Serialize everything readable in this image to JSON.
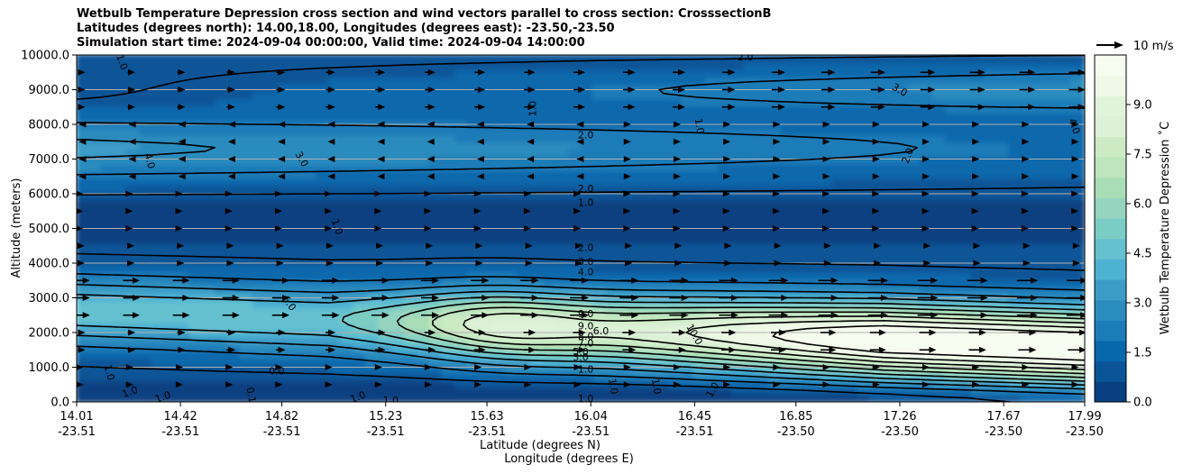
{
  "chart_data": {
    "type": "contour-cross-section",
    "title_lines": [
      "Wetbulb Temperature Depression cross section and wind vectors parallel to cross section: CrosssectionB",
      "Latitudes (degrees north): 14.00,18.00, Longitudes (degrees east): -23.50,-23.50",
      "Simulation start time: 2024-09-04 00:00:00, Valid time: 2024-09-04 14:00:00"
    ],
    "ylabel": "Altitude (meters)",
    "xlabel_line1": "Latitude (degrees N)",
    "xlabel_line2": "Longitude (degrees E)",
    "ylim": [
      0,
      10000
    ],
    "yticks": [
      "0.0",
      "1000.0",
      "2000.0",
      "3000.0",
      "4000.0",
      "5000.0",
      "6000.0",
      "7000.0",
      "8000.0",
      "9000.0",
      "10000.0"
    ],
    "ytick_values": [
      0,
      1000,
      2000,
      3000,
      4000,
      5000,
      6000,
      7000,
      8000,
      9000,
      10000
    ],
    "xlim": [
      14.01,
      17.99
    ],
    "xticks_lat": [
      "14.01",
      "14.42",
      "14.82",
      "15.23",
      "15.63",
      "16.04",
      "16.45",
      "16.85",
      "17.26",
      "17.67",
      "17.99"
    ],
    "xticks_lon": [
      "-23.51",
      "-23.51",
      "-23.51",
      "-23.51",
      "-23.51",
      "-23.51",
      "-23.51",
      "-23.50",
      "-23.50",
      "-23.50",
      "-23.50"
    ],
    "xtick_values": [
      14.01,
      14.42,
      14.82,
      15.23,
      15.63,
      16.04,
      16.45,
      16.85,
      17.26,
      17.67,
      17.99
    ],
    "colorbar": {
      "label": "Wetbulb Temperature Depression ˚C",
      "min": 0,
      "max": 10.5,
      "ticks": [
        "0.0",
        "1.5",
        "3.0",
        "4.5",
        "6.0",
        "7.5",
        "9.0"
      ],
      "tick_values": [
        0,
        1.5,
        3.0,
        4.5,
        6.0,
        7.5,
        9.0
      ],
      "colors": [
        "#084081",
        "#0a5597",
        "#0868ac",
        "#1b7cb8",
        "#2b8cbe",
        "#3c9cc8",
        "#4eb3d3",
        "#65c1cf",
        "#7bccc4",
        "#95d5bf",
        "#a8ddb5",
        "#bde5be",
        "#ccebc5",
        "#dcf1d5",
        "#e0f3db",
        "#f0f9e8",
        "#f7fcf0"
      ]
    },
    "wind_key_label": "10 m/s",
    "contour_labels": [
      {
        "text": "1.0",
        "lat": 14.19,
        "alt": 9800,
        "rot": 70
      },
      {
        "text": "4.0",
        "lat": 14.3,
        "alt": 6950,
        "rot": 75
      },
      {
        "text": "3.0",
        "lat": 14.9,
        "alt": 7000,
        "rot": 60
      },
      {
        "text": "1.0",
        "lat": 15.04,
        "alt": 5050,
        "rot": 70
      },
      {
        "text": "1.0",
        "lat": 15.81,
        "alt": 8450,
        "rot": -90
      },
      {
        "text": "2.0",
        "lat": 16.02,
        "alt": 7700,
        "rot": 0
      },
      {
        "text": "2.0",
        "lat": 16.02,
        "alt": 6150,
        "rot": 0
      },
      {
        "text": "1.0",
        "lat": 16.02,
        "alt": 5750,
        "rot": 0
      },
      {
        "text": "1.0",
        "lat": 16.47,
        "alt": 7950,
        "rot": 80
      },
      {
        "text": "3.0",
        "lat": 17.26,
        "alt": 9000,
        "rot": 30
      },
      {
        "text": "2.0",
        "lat": 17.29,
        "alt": 7100,
        "rot": -70
      },
      {
        "text": "4.0",
        "lat": 17.95,
        "alt": 7950,
        "rot": 70
      },
      {
        "text": "2.0",
        "lat": 16.65,
        "alt": 9950,
        "rot": 0
      },
      {
        "text": "2.0",
        "lat": 16.02,
        "alt": 4450,
        "rot": 0
      },
      {
        "text": "3.0",
        "lat": 16.02,
        "alt": 4050,
        "rot": 0
      },
      {
        "text": "4.0",
        "lat": 16.02,
        "alt": 3750,
        "rot": 0
      },
      {
        "text": "6.0",
        "lat": 14.85,
        "alt": 2850,
        "rot": 55
      },
      {
        "text": "9.0",
        "lat": 16.02,
        "alt": 2550,
        "rot": 0
      },
      {
        "text": "9.0",
        "lat": 16.02,
        "alt": 2200,
        "rot": 0
      },
      {
        "text": "8.0",
        "lat": 16.02,
        "alt": 1900,
        "rot": 0
      },
      {
        "text": "7.0",
        "lat": 16.02,
        "alt": 1700,
        "rot": 0
      },
      {
        "text": "10.0",
        "lat": 16.45,
        "alt": 1950,
        "rot": 60
      },
      {
        "text": "6.0",
        "lat": 16.08,
        "alt": 2050,
        "rot": 0
      },
      {
        "text": "5.0",
        "lat": 16.0,
        "alt": 1450,
        "rot": 0
      },
      {
        "text": "3.0",
        "lat": 16.0,
        "alt": 1300,
        "rot": 0
      },
      {
        "text": "1.0",
        "lat": 16.02,
        "alt": 950,
        "rot": 0
      },
      {
        "text": "1.0",
        "lat": 16.02,
        "alt": 100,
        "rot": 0
      },
      {
        "text": "0.0",
        "lat": 14.8,
        "alt": 900,
        "rot": 0
      },
      {
        "text": "1.0",
        "lat": 14.14,
        "alt": 850,
        "rot": 75
      },
      {
        "text": "1.0",
        "lat": 14.22,
        "alt": 300,
        "rot": -20
      },
      {
        "text": "1.0",
        "lat": 14.35,
        "alt": 150,
        "rot": -20
      },
      {
        "text": "0.1",
        "lat": 14.7,
        "alt": 200,
        "rot": 80
      },
      {
        "text": "1.0",
        "lat": 15.12,
        "alt": 150,
        "rot": -20
      },
      {
        "text": "1.0",
        "lat": 15.25,
        "alt": 50,
        "rot": 0
      },
      {
        "text": "1.0",
        "lat": 16.13,
        "alt": 450,
        "rot": 80
      },
      {
        "text": "1.0",
        "lat": 16.3,
        "alt": 450,
        "rot": 80
      },
      {
        "text": "1.0",
        "lat": 16.52,
        "alt": 350,
        "rot": -60
      }
    ]
  }
}
